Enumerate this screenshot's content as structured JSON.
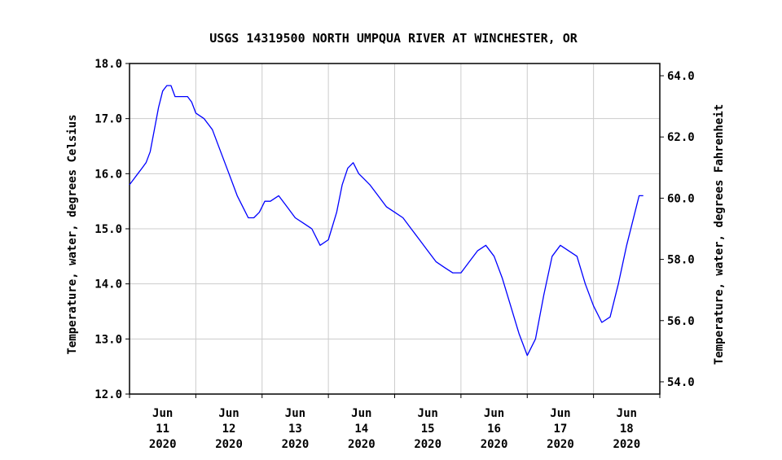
{
  "chart_data": {
    "type": "line",
    "title": "USGS 14319500 NORTH UMPQUA RIVER AT WINCHESTER, OR",
    "ylabel": "Temperature, water, degrees Celsius",
    "y2label": "Temperature, water, degrees Fahrenheit",
    "ylim": [
      12.0,
      18.0
    ],
    "y2lim": [
      53.6,
      64.4
    ],
    "yticks": [
      "12.0",
      "13.0",
      "14.0",
      "15.0",
      "16.0",
      "17.0",
      "18.0"
    ],
    "y2ticks": [
      "54.0",
      "56.0",
      "58.0",
      "60.0",
      "62.0",
      "64.0"
    ],
    "xlim": [
      "2020-06-11T00:00",
      "2020-06-19T00:00"
    ],
    "xticks": [
      {
        "month": "Jun",
        "day": "11",
        "year": "2020"
      },
      {
        "month": "Jun",
        "day": "12",
        "year": "2020"
      },
      {
        "month": "Jun",
        "day": "13",
        "year": "2020"
      },
      {
        "month": "Jun",
        "day": "14",
        "year": "2020"
      },
      {
        "month": "Jun",
        "day": "15",
        "year": "2020"
      },
      {
        "month": "Jun",
        "day": "16",
        "year": "2020"
      },
      {
        "month": "Jun",
        "day": "17",
        "year": "2020"
      },
      {
        "month": "Jun",
        "day": "18",
        "year": "2020"
      }
    ],
    "grid": true,
    "line_color": "#0000ff",
    "series": [
      {
        "x": [
          "2020-06-11T00:00",
          "2020-06-11T01:30",
          "2020-06-11T03:00",
          "2020-06-11T04:30",
          "2020-06-11T06:00",
          "2020-06-11T07:30",
          "2020-06-11T09:00",
          "2020-06-11T10:30",
          "2020-06-11T12:00",
          "2020-06-11T13:30",
          "2020-06-11T15:00",
          "2020-06-11T16:30",
          "2020-06-11T18:00",
          "2020-06-11T19:30",
          "2020-06-11T21:00",
          "2020-06-11T22:30",
          "2020-06-12T00:00",
          "2020-06-12T03:00",
          "2020-06-12T06:00",
          "2020-06-12T09:00",
          "2020-06-12T12:00",
          "2020-06-12T15:00",
          "2020-06-12T17:00",
          "2020-06-12T19:00",
          "2020-06-12T21:00",
          "2020-06-12T23:00",
          "2020-06-13T01:00",
          "2020-06-13T03:00",
          "2020-06-13T06:00",
          "2020-06-13T09:00",
          "2020-06-13T12:00",
          "2020-06-13T15:00",
          "2020-06-13T18:00",
          "2020-06-13T21:00",
          "2020-06-14T00:00",
          "2020-06-14T03:00",
          "2020-06-14T05:00",
          "2020-06-14T07:00",
          "2020-06-14T09:00",
          "2020-06-14T11:00",
          "2020-06-14T13:00",
          "2020-06-14T15:00",
          "2020-06-14T18:00",
          "2020-06-14T21:00",
          "2020-06-15T00:00",
          "2020-06-15T03:00",
          "2020-06-15T06:00",
          "2020-06-15T09:00",
          "2020-06-15T12:00",
          "2020-06-15T15:00",
          "2020-06-15T18:00",
          "2020-06-15T21:00",
          "2020-06-16T00:00",
          "2020-06-16T03:00",
          "2020-06-16T06:00",
          "2020-06-16T09:00",
          "2020-06-16T12:00",
          "2020-06-16T15:00",
          "2020-06-16T18:00",
          "2020-06-16T21:00",
          "2020-06-17T00:00",
          "2020-06-17T03:00",
          "2020-06-17T06:00",
          "2020-06-17T09:00",
          "2020-06-17T12:00",
          "2020-06-17T15:00",
          "2020-06-17T18:00",
          "2020-06-17T21:00",
          "2020-06-18T00:00",
          "2020-06-18T03:00",
          "2020-06-18T06:00",
          "2020-06-18T09:00",
          "2020-06-18T12:00",
          "2020-06-18T15:00",
          "2020-06-18T16:30",
          "2020-06-18T18:00"
        ],
        "y": [
          15.8,
          15.9,
          16.0,
          16.1,
          16.2,
          16.4,
          16.8,
          17.2,
          17.5,
          17.6,
          17.6,
          17.4,
          17.4,
          17.4,
          17.4,
          17.3,
          17.1,
          17.0,
          16.8,
          16.4,
          16.0,
          15.6,
          15.4,
          15.2,
          15.2,
          15.3,
          15.5,
          15.5,
          15.6,
          15.4,
          15.2,
          15.1,
          15.0,
          14.7,
          14.8,
          15.3,
          15.8,
          16.1,
          16.2,
          16.0,
          15.9,
          15.8,
          15.6,
          15.4,
          15.3,
          15.2,
          15.0,
          14.8,
          14.6,
          14.4,
          14.3,
          14.2,
          14.2,
          14.4,
          14.6,
          14.7,
          14.5,
          14.1,
          13.6,
          13.1,
          12.7,
          13.0,
          13.8,
          14.5,
          14.7,
          14.6,
          14.5,
          14.0,
          13.6,
          13.3,
          13.4,
          14.0,
          14.7,
          15.3,
          15.6,
          15.6
        ]
      }
    ]
  }
}
